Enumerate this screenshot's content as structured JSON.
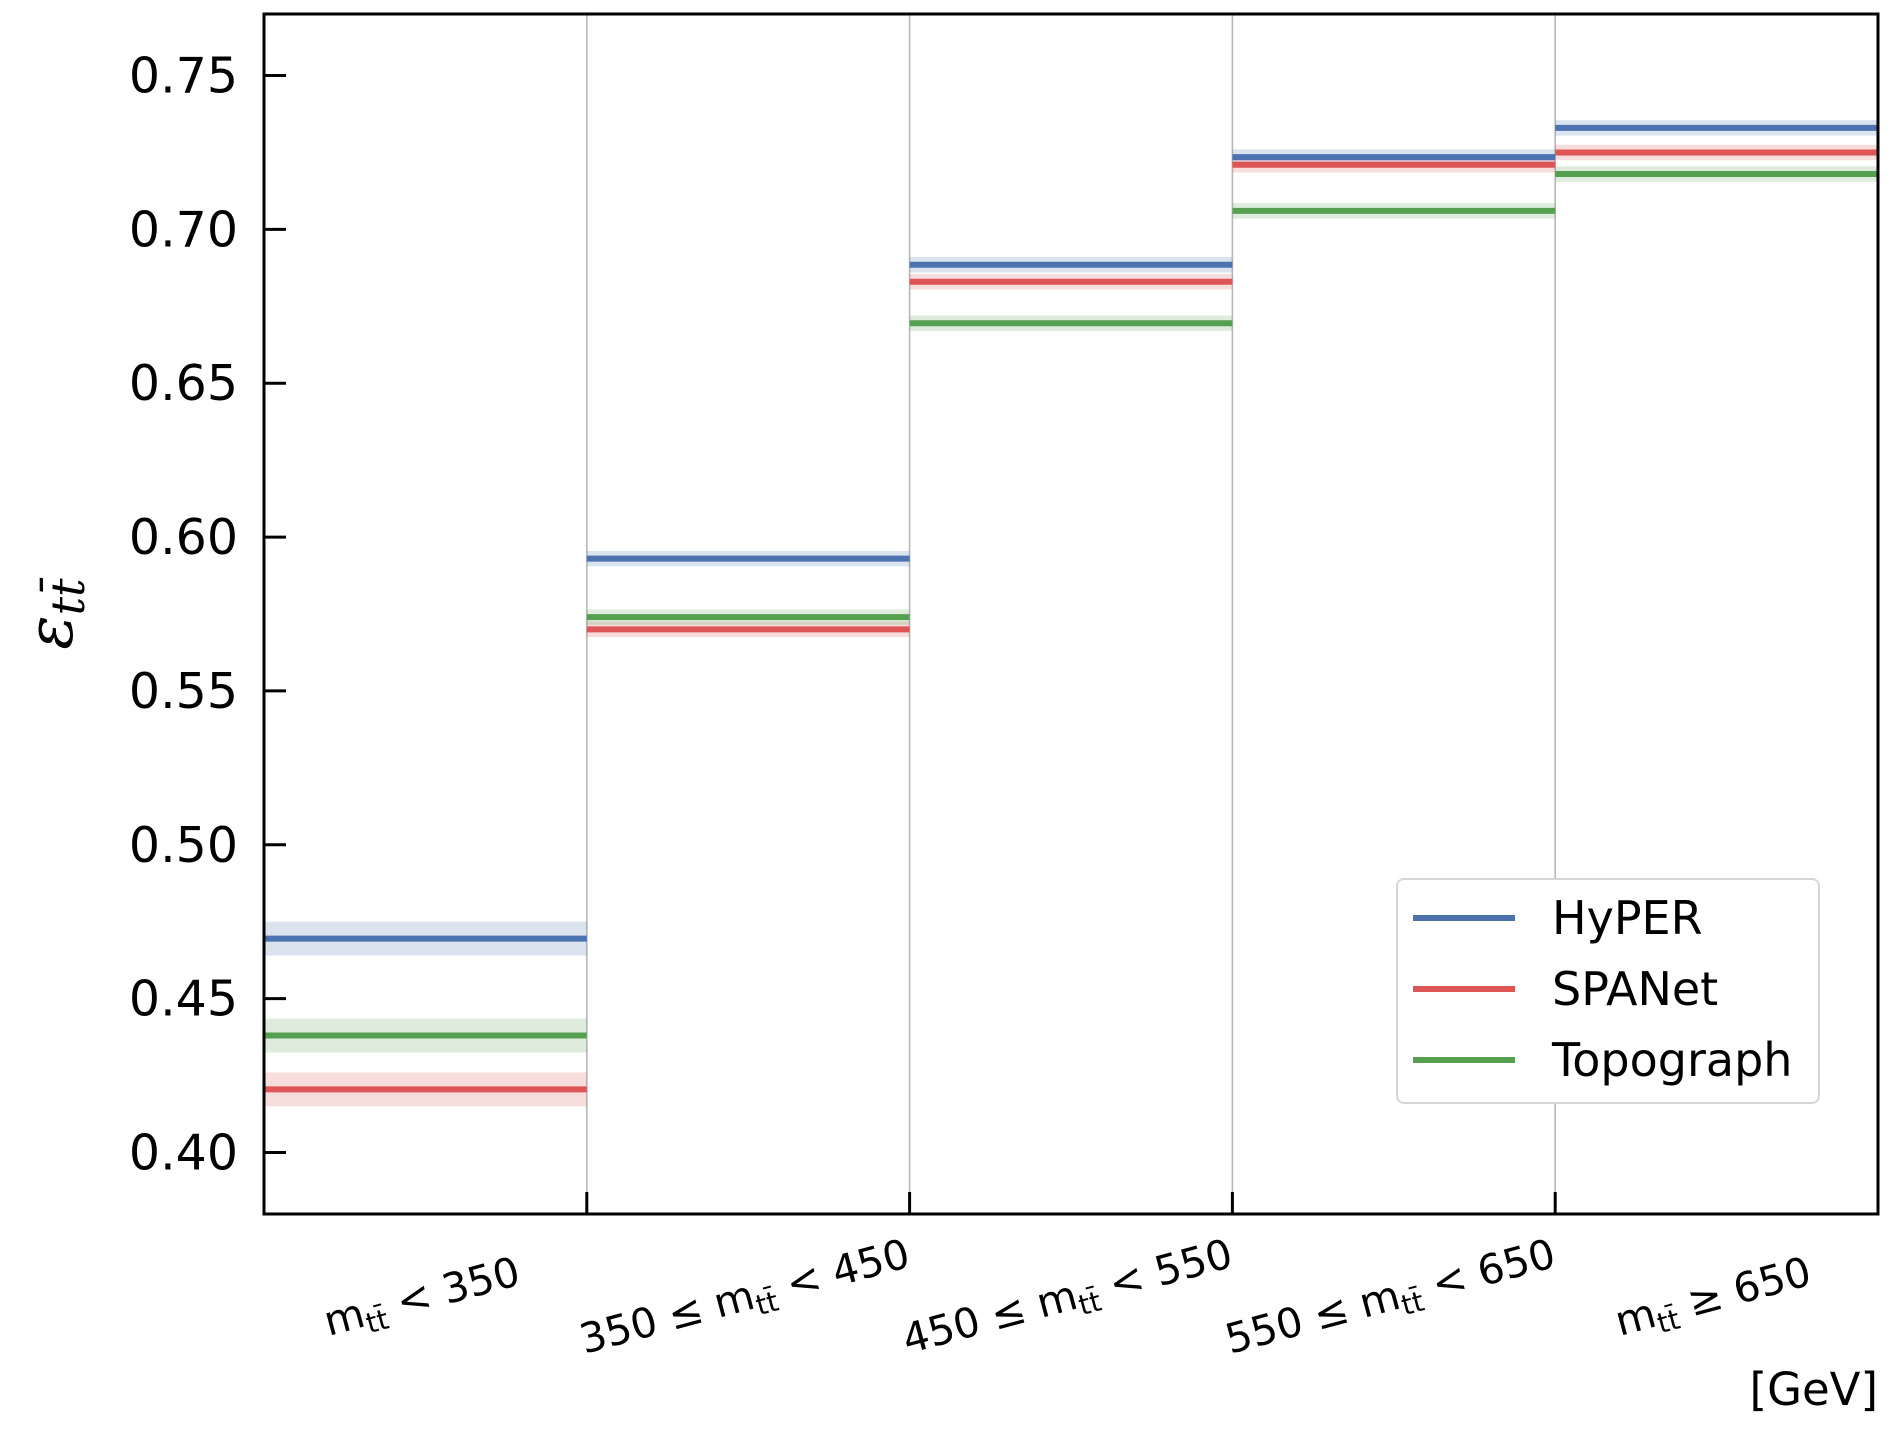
{
  "chart_data": {
    "type": "line",
    "categories": [
      [
        "m",
        "tt̄",
        " < 350"
      ],
      [
        "350 ≤ m",
        "tt̄",
        " < 450"
      ],
      [
        "450 ≤ m",
        "tt̄",
        " < 550"
      ],
      [
        "550 ≤ m",
        "tt̄",
        " < 650"
      ],
      [
        "m",
        "tt̄",
        " ≥ 650"
      ]
    ],
    "x_unit": "[GeV]",
    "ylabel": {
      "symbol": "ε",
      "subscript": "tt̄"
    },
    "ylim": [
      0.38,
      0.77
    ],
    "yticks": [
      "0.40",
      "0.45",
      "0.50",
      "0.55",
      "0.60",
      "0.65",
      "0.70",
      "0.75"
    ],
    "grid": "vertical",
    "legend_position": "lower-right",
    "series": [
      {
        "name": "HyPER",
        "color": "#4c72b0",
        "values": [
          0.4695,
          0.593,
          0.6885,
          0.7235,
          0.733
        ],
        "errors": [
          0.0055,
          0.0025,
          0.0025,
          0.0025,
          0.0025
        ]
      },
      {
        "name": "SPANet",
        "color": "#dd5555",
        "values": [
          0.4205,
          0.57,
          0.683,
          0.721,
          0.725
        ],
        "errors": [
          0.0055,
          0.0025,
          0.0025,
          0.0025,
          0.0025
        ]
      },
      {
        "name": "Topograph",
        "color": "#55a050",
        "values": [
          0.438,
          0.574,
          0.6695,
          0.706,
          0.718
        ],
        "errors": [
          0.0055,
          0.0025,
          0.0025,
          0.0025,
          0.0025
        ]
      }
    ]
  }
}
